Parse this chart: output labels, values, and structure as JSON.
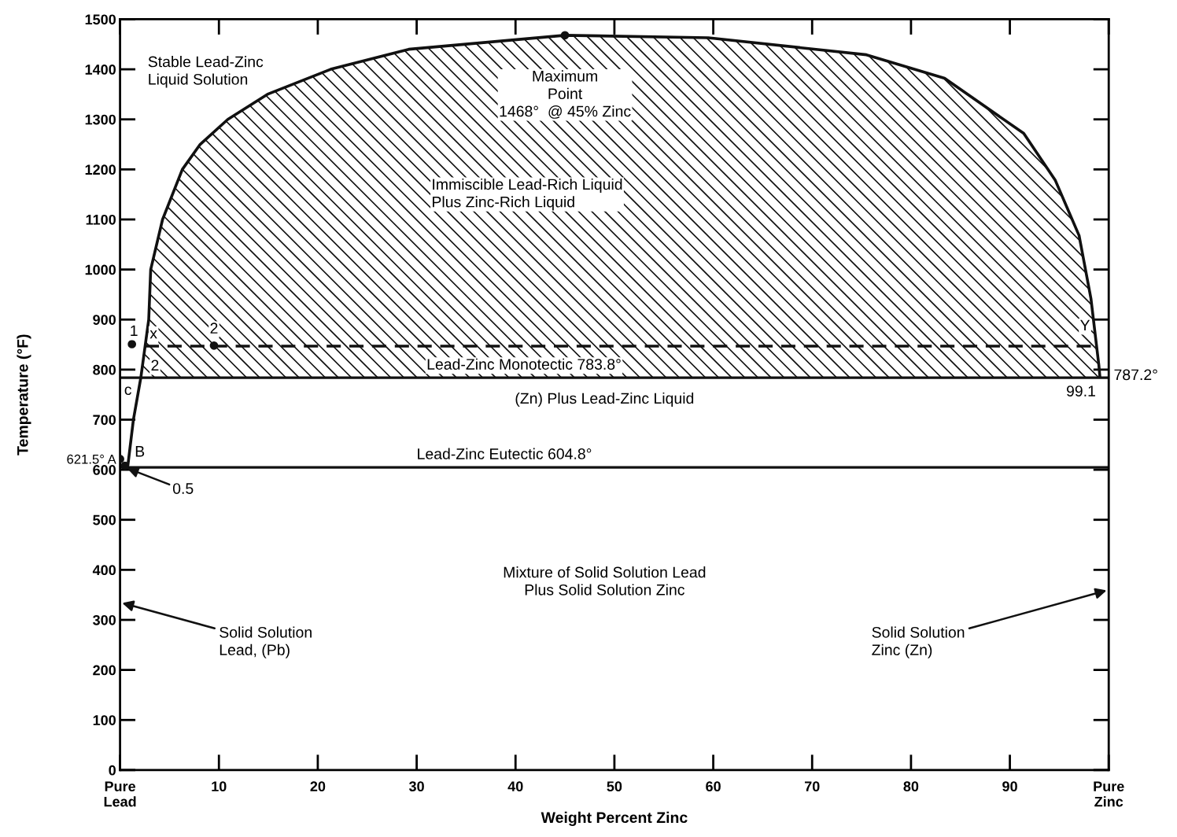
{
  "chart_data": {
    "type": "line",
    "xlabel": "Weight Percent Zinc",
    "ylabel": "Temperature (°F)",
    "xlim": [
      0,
      100
    ],
    "ylim": [
      0,
      1500
    ],
    "xticks": [
      {
        "value": 0,
        "label": "Pure\nLead"
      },
      10,
      20,
      30,
      40,
      50,
      60,
      70,
      80,
      90,
      {
        "value": 100,
        "label": "Pure\nZinc"
      }
    ],
    "yticks": [
      0,
      100,
      200,
      300,
      400,
      500,
      600,
      {
        "value": 621.5,
        "label": "621.5° A"
      },
      700,
      800,
      900,
      1000,
      1100,
      1200,
      1300,
      1400,
      1500
    ],
    "grid": false,
    "series": [
      {
        "color": "#111111",
        "line_style": "solid",
        "marker": "none",
        "x": [
          0.5,
          0.8,
          1.35,
          2.1,
          2.9,
          3.1,
          4.3,
          6.3,
          8.1,
          10.9,
          14.9,
          21.3,
          29.2,
          45,
          59.5,
          75.5,
          83.4,
          91.4,
          94.6,
          97,
          98.2,
          99.0,
          99.1
        ],
        "values": [
          605,
          610,
          700,
          783.8,
          900,
          1000,
          1100,
          1200,
          1250,
          1300,
          1350,
          1400,
          1440,
          1468,
          1463,
          1429,
          1382,
          1272,
          1178,
          1068,
          942,
          809,
          787.2
        ],
        "lower": [
          null,
          null,
          null,
          783.8,
          783.8,
          783.8,
          783.8,
          783.8,
          783.8,
          783.8,
          783.8,
          783.8,
          783.8,
          783.8,
          783.8,
          783.8,
          783.8,
          783.8,
          783.8,
          783.8,
          783.8,
          783.8,
          783.8
        ],
        "upper": [
          null,
          null,
          null,
          783.8,
          900,
          1000,
          1100,
          1200,
          1250,
          1300,
          1350,
          1400,
          1440,
          1468,
          1463,
          1429,
          1382,
          1272,
          1178,
          1068,
          942,
          809,
          787.2
        ]
      },
      {
        "type": "line",
        "color": "#111111",
        "line_style": "dashed",
        "marker": "none",
        "x": [
          2.5,
          98.6
        ],
        "values": [
          847,
          847
        ]
      },
      {
        "type": "scatter",
        "color": "#111111",
        "marker": "circle",
        "x": [
          1.2,
          9.5,
          45,
          0,
          0.5
        ],
        "values": [
          851,
          848,
          1468,
          621.5,
          608
        ]
      }
    ],
    "ref_lines": [
      {
        "axis": "y",
        "value": 783.8,
        "label": "Lead-Zinc Monotectic 783.8°",
        "color": "#111111",
        "line_style": "solid"
      },
      {
        "axis": "y",
        "value": 604.8,
        "label": "Lead-Zinc Eutectic 604.8°",
        "color": "#111111",
        "line_style": "solid"
      }
    ],
    "annotations": [
      "Stable Lead-Zinc\nLiquid Solution",
      {
        "text": "Maximum\nPoint\n1468°  @ 45% Zinc",
        "x": 45,
        "y": 1468
      },
      "Immiscible Lead-Rich Liquid\nPlus Zinc-Rich Liquid",
      "(Zn) Plus Lead-Zinc Liquid",
      "Mixture of Solid Solution Lead\nPlus Solid Solution Zinc",
      {
        "text": "B",
        "x": 0.5,
        "y": 604.8
      },
      {
        "text": "0.5",
        "x": 0.5,
        "y": 604.8
      },
      {
        "text": "1",
        "x": 1.2,
        "y": 851
      },
      {
        "text": "x",
        "x": 2.7,
        "y": 870
      },
      {
        "text": "2",
        "x": 9.5,
        "y": 848
      },
      {
        "text": "2",
        "x": 2.1,
        "y": 783.8
      },
      {
        "text": "c",
        "x": 2.1,
        "y": 783.8
      },
      {
        "text": "Y",
        "x": 99.0,
        "y": 847
      },
      {
        "text": "787.2°",
        "x": 99.1,
        "y": 787.2
      },
      {
        "text": "99.1",
        "x": 99.1,
        "y": 783.8
      },
      "Solid Solution\nLead, (Pb)",
      "Solid Solution\nZinc (Zn)"
    ]
  }
}
